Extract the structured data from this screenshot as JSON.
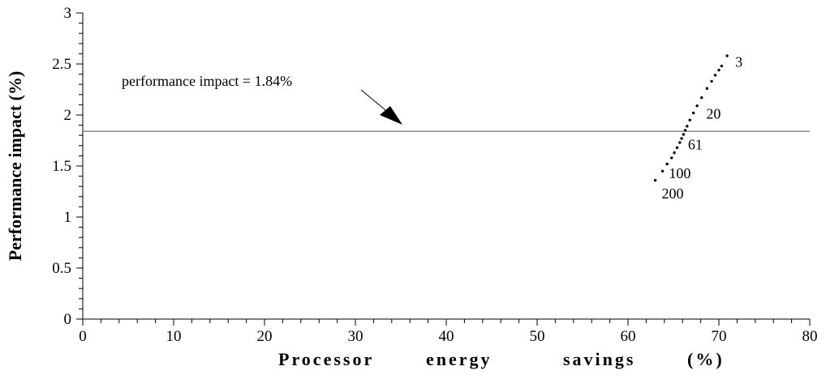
{
  "chart_data": {
    "type": "scatter",
    "xlabel_words": [
      "Processor",
      "energy",
      "savings",
      "(%)"
    ],
    "ylabel": "Performance impact (%)",
    "xlim": [
      0,
      80
    ],
    "ylim": [
      0,
      3
    ],
    "x_ticks": [
      "0",
      "10",
      "20",
      "30",
      "40",
      "50",
      "60",
      "70",
      "80"
    ],
    "y_ticks": [
      "0",
      "0.5",
      "1",
      "1.5",
      "2",
      "2.5",
      "3"
    ],
    "grid": false,
    "reference_line": {
      "y": 1.84,
      "label": "performance impact = 1.84%"
    },
    "points": [
      {
        "x": 63.0,
        "y": 1.36
      },
      {
        "x": 63.8,
        "y": 1.45
      },
      {
        "x": 64.3,
        "y": 1.52
      },
      {
        "x": 64.8,
        "y": 1.58
      },
      {
        "x": 65.1,
        "y": 1.63
      },
      {
        "x": 65.4,
        "y": 1.68
      },
      {
        "x": 65.7,
        "y": 1.73
      },
      {
        "x": 65.9,
        "y": 1.77
      },
      {
        "x": 66.1,
        "y": 1.81
      },
      {
        "x": 66.3,
        "y": 1.85
      },
      {
        "x": 66.5,
        "y": 1.89
      },
      {
        "x": 66.8,
        "y": 1.95
      },
      {
        "x": 67.2,
        "y": 2.02
      },
      {
        "x": 67.6,
        "y": 2.09
      },
      {
        "x": 68.1,
        "y": 2.17
      },
      {
        "x": 68.7,
        "y": 2.26
      },
      {
        "x": 69.2,
        "y": 2.33
      },
      {
        "x": 69.6,
        "y": 2.39
      },
      {
        "x": 70.0,
        "y": 2.44
      },
      {
        "x": 70.3,
        "y": 2.48
      },
      {
        "x": 70.9,
        "y": 2.58
      }
    ],
    "point_labels": [
      {
        "text": "3",
        "x": 71.8,
        "y": 2.52
      },
      {
        "text": "20",
        "x": 68.6,
        "y": 2.01
      },
      {
        "text": "61",
        "x": 66.6,
        "y": 1.71
      },
      {
        "text": "100",
        "x": 64.5,
        "y": 1.43
      },
      {
        "text": "200",
        "x": 63.7,
        "y": 1.23
      }
    ]
  }
}
